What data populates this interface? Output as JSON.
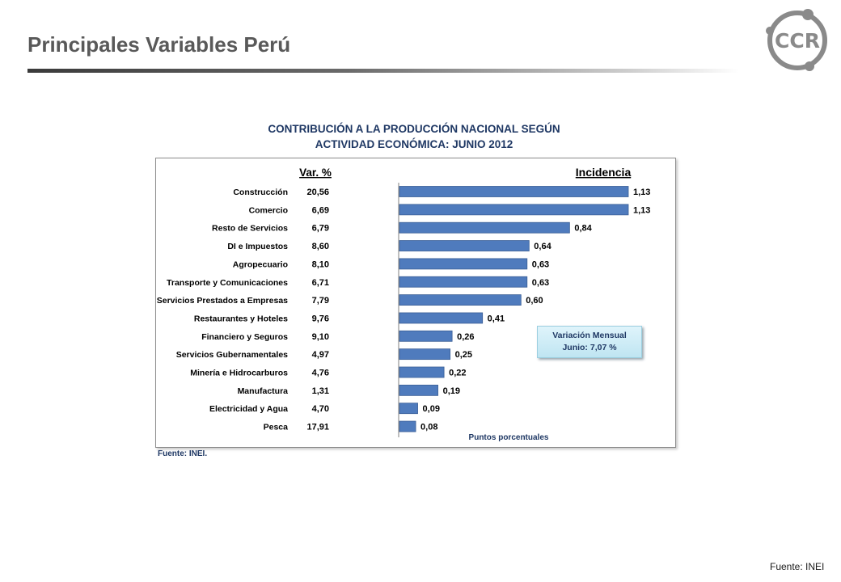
{
  "slide": {
    "title": "Principales Variables Perú",
    "logo_text": "CCR",
    "footer_source": "Fuente: INEI"
  },
  "chart_data": {
    "type": "bar",
    "orientation": "horizontal",
    "title_line1": "CONTRIBUCIÓN A LA PRODUCCIÓN NACIONAL SEGÚN",
    "title_line2": "ACTIVIDAD ECONÓMICA: JUNIO 2012",
    "var_header": "Var. %",
    "incidencia_header": "Incidencia",
    "xlabel": "Puntos porcentuales",
    "source": "Fuente: INEI.",
    "callout_line1": "Variación Mensual",
    "callout_line2": "Junio: 7,07 %",
    "bar_color": "#4f7bbd",
    "categories": [
      "Construcción",
      "Comercio",
      "Resto de Servicios",
      "DI e Impuestos",
      "Agropecuario",
      "Transporte y Comunicaciones",
      "Servicios Prestados a Empresas",
      "Restaurantes y Hoteles",
      "Financiero y Seguros",
      "Servicios Gubernamentales",
      "Minería e Hidrocarburos",
      "Manufactura",
      "Electricidad y Agua",
      "Pesca"
    ],
    "var_pct": [
      "20,56",
      "6,69",
      "6,79",
      "8,60",
      "8,10",
      "6,71",
      "7,79",
      "9,76",
      "9,10",
      "4,97",
      "4,76",
      "1,31",
      "4,70",
      "17,91"
    ],
    "values": [
      1.13,
      1.13,
      0.84,
      0.64,
      0.63,
      0.63,
      0.6,
      0.41,
      0.26,
      0.25,
      0.22,
      0.19,
      0.09,
      0.08
    ],
    "value_labels": [
      "1,13",
      "1,13",
      "0,84",
      "0,64",
      "0,63",
      "0,63",
      "0,60",
      "0,41",
      "0,26",
      "0,25",
      "0,22",
      "0,19",
      "0,09",
      "0,08"
    ],
    "xlim": [
      0,
      1.13
    ]
  }
}
